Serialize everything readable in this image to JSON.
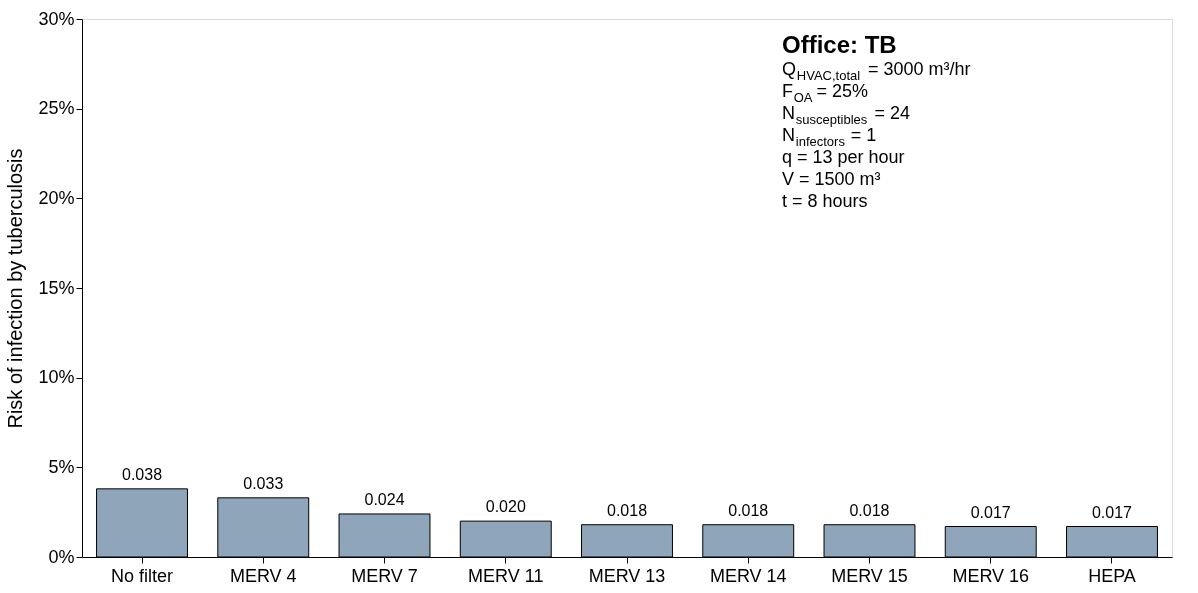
{
  "chart_data": {
    "type": "bar",
    "ylabel": "Risk of infection by tuberculosis",
    "categories": [
      "No filter",
      "MERV 4",
      "MERV 7",
      "MERV 11",
      "MERV 13",
      "MERV 14",
      "MERV 15",
      "MERV 16",
      "HEPA"
    ],
    "values": [
      0.038,
      0.033,
      0.024,
      0.02,
      0.018,
      0.018,
      0.018,
      0.017,
      0.017
    ],
    "value_labels": [
      "0.038",
      "0.033",
      "0.024",
      "0.020",
      "0.018",
      "0.018",
      "0.018",
      "0.017",
      "0.017"
    ],
    "color": "#8ea5ba",
    "ylim": [
      0,
      0.3
    ],
    "yticks": [
      {
        "value": 0,
        "label": "0%"
      },
      {
        "value": 0.05,
        "label": "5%"
      },
      {
        "value": 0.1,
        "label": "10%"
      },
      {
        "value": 0.15,
        "label": "15%"
      },
      {
        "value": 0.2,
        "label": "20%"
      },
      {
        "value": 0.25,
        "label": "25%"
      },
      {
        "value": 0.3,
        "label": "30%"
      }
    ],
    "grid": false,
    "annotations": [
      "Office: TB",
      "Q$_{HVAC,total}$ = 3000 m³/hr",
      "F$_{OA}$ = 25%",
      "N$_{susceptibles}$ = 24",
      "N$_{infectors}$ = 1",
      "q = 13 per hour",
      "V = 1500 m³",
      "t = 8 hours"
    ]
  }
}
